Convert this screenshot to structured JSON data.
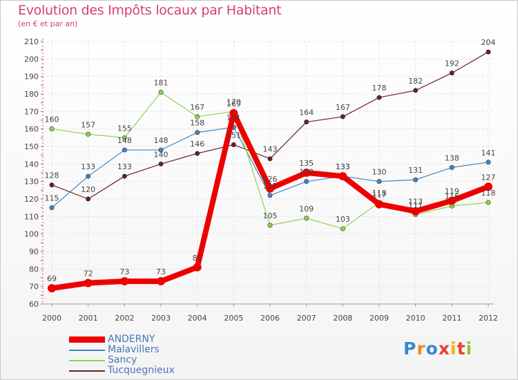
{
  "chart_data": {
    "type": "line",
    "title": "Evolution des Impôts locaux par Habitant",
    "subtitle": "(en € et par an)",
    "x": [
      "2000",
      "2001",
      "2002",
      "2003",
      "2004",
      "2005",
      "2006",
      "2007",
      "2008",
      "2009",
      "2010",
      "2011",
      "2012"
    ],
    "ylim": [
      60,
      210
    ],
    "yticks": [
      60,
      70,
      80,
      90,
      100,
      110,
      120,
      130,
      140,
      150,
      160,
      170,
      180,
      190,
      200,
      210
    ],
    "grid": true,
    "legend_position": "bottom-left",
    "series": [
      {
        "name": "Tucquegnieux",
        "color": "#6b1f24",
        "emphasis": false,
        "values": [
          128,
          120,
          133,
          140,
          146,
          151,
          143,
          164,
          167,
          178,
          182,
          192,
          204
        ],
        "labels": [
          "128",
          "120",
          "133",
          "140",
          "146",
          "151",
          "143",
          "164",
          "167",
          "178",
          "182",
          "192",
          "204"
        ]
      },
      {
        "name": "Malavillers",
        "color": "#3f86c8",
        "emphasis": false,
        "values": [
          115,
          133,
          148,
          148,
          158,
          161,
          122,
          130,
          133,
          130,
          131,
          138,
          141
        ],
        "labels": [
          "115",
          "133",
          "148",
          "148",
          "158",
          "161",
          "122",
          "130",
          "133",
          "130",
          "131",
          "138",
          "141"
        ]
      },
      {
        "name": "Sancy",
        "color": "#8ed44a",
        "emphasis": false,
        "values": [
          160,
          157,
          155,
          181,
          167,
          170,
          105,
          109,
          103,
          118,
          111,
          116,
          118
        ],
        "labels": [
          "160",
          "157",
          "155",
          "181",
          "167",
          "170",
          "105",
          "109",
          "103",
          "118",
          "111",
          "116",
          "118"
        ]
      },
      {
        "name": "ANDERNY",
        "color": "#ee0000",
        "emphasis": true,
        "values": [
          69,
          72,
          73,
          73,
          81,
          169,
          126,
          135,
          133,
          117,
          113,
          119,
          127
        ],
        "labels": [
          "69",
          "72",
          "73",
          "73",
          "81",
          "169",
          "126",
          "135",
          "133",
          "117",
          "113",
          "119",
          "127"
        ]
      }
    ]
  },
  "legend": {
    "items": [
      {
        "label": "ANDERNY"
      },
      {
        "label": "Malavillers"
      },
      {
        "label": "Sancy"
      },
      {
        "label": "Tucquegnieux"
      }
    ]
  },
  "logo": {
    "letters": [
      "P",
      "r",
      "o",
      "x",
      "i",
      "t",
      "i"
    ],
    "colors": [
      "#3a86d0",
      "#f08a1a",
      "#3a86d0",
      "#e8402a",
      "#f0b800",
      "#e8402a",
      "#8cc63f"
    ]
  }
}
